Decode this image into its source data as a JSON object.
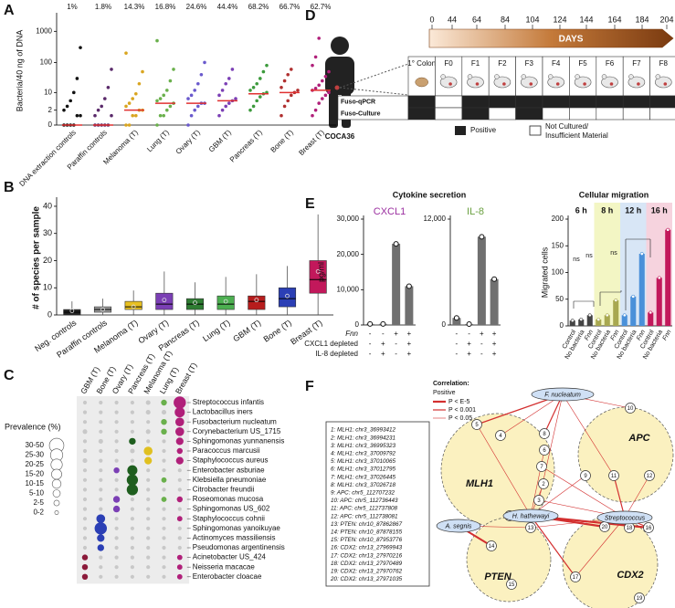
{
  "panel_labels": [
    "A",
    "B",
    "C",
    "D",
    "E",
    "F"
  ],
  "chart_data": [
    {
      "type": "strip",
      "ylabel": "Bacteria/40 ng of DNA",
      "yscale": "log1p",
      "ylim": [
        0,
        3000
      ],
      "yticks": [
        0,
        2,
        10,
        100,
        1000
      ],
      "categories": [
        "DNA extraction controls",
        "Paraffin controls",
        "Melanoma (T)",
        "Lung (T)",
        "Ovary (T)",
        "GBM (T)",
        "Pancreas (T)",
        "Bone (T)",
        "Breast (T)"
      ],
      "annotations": [
        "1%",
        "1.8%",
        "14.3%",
        "16.8%",
        "24.6%",
        "44.4%",
        "68.2%",
        "66.7%",
        "62.7%"
      ],
      "colors": [
        "#111111",
        "#5a2a6a",
        "#d9a520",
        "#6ab04c",
        "#6a5acd",
        "#7b3fb5",
        "#3c9a3c",
        "#b03030",
        "#b0207a"
      ],
      "median_color": "#e03030",
      "medians": [
        0,
        0,
        2,
        4,
        4,
        5,
        9,
        10,
        12
      ],
      "points": [
        [
          0,
          0,
          0,
          0,
          1,
          1,
          2,
          3,
          5,
          10,
          30,
          300
        ],
        [
          0,
          0,
          0,
          0,
          0,
          1,
          1,
          2,
          3,
          6,
          15,
          60
        ],
        [
          0,
          0,
          1,
          1,
          2,
          2,
          3,
          4,
          6,
          9,
          20,
          50,
          200
        ],
        [
          0,
          1,
          1,
          2,
          3,
          4,
          5,
          6,
          8,
          12,
          25,
          60,
          500
        ],
        [
          0,
          1,
          2,
          3,
          4,
          4,
          6,
          8,
          12,
          20,
          40,
          100
        ],
        [
          1,
          2,
          3,
          4,
          5,
          6,
          8,
          12,
          20,
          30,
          60
        ],
        [
          2,
          3,
          5,
          7,
          9,
          10,
          12,
          15,
          20,
          30,
          50,
          80
        ],
        [
          1,
          3,
          5,
          8,
          10,
          12,
          15,
          25,
          40,
          60
        ],
        [
          1,
          2,
          4,
          6,
          8,
          10,
          12,
          14,
          18,
          25,
          35,
          50,
          80,
          150,
          600
        ]
      ]
    },
    {
      "type": "box",
      "ylabel": "# of species per sample",
      "ylim": [
        0,
        42
      ],
      "yticks": [
        0,
        10,
        20,
        30,
        40
      ],
      "categories": [
        "Neg. controls",
        "Paraffin controls",
        "Melanoma (T)",
        "Ovary (T)",
        "Pancreas (T)",
        "Lung (T)",
        "GBM (T)",
        "Bone (T)",
        "Breast (T)"
      ],
      "colors": [
        "#222222",
        "#999999",
        "#e8c020",
        "#7b3fb5",
        "#2e7d32",
        "#4caf50",
        "#b71c1c",
        "#2b3fb5",
        "#c2185b"
      ],
      "whisker_low": [
        0,
        0,
        0,
        0,
        0,
        0,
        0,
        0,
        0
      ],
      "q1": [
        0,
        1,
        2,
        2,
        2,
        2,
        2,
        3,
        8
      ],
      "median": [
        1,
        2,
        3,
        4,
        4,
        4,
        5,
        6,
        13
      ],
      "q3": [
        2,
        3,
        5,
        8,
        6,
        7,
        7,
        10,
        20
      ],
      "whisker_high": [
        5,
        6,
        9,
        16,
        12,
        14,
        15,
        18,
        37
      ],
      "means": [
        1.5,
        2,
        3,
        5.5,
        4.5,
        5,
        5.5,
        7,
        16
      ]
    },
    {
      "type": "dot_matrix",
      "legend_title": "Prevalence (%)",
      "background_color": "#c8c8c8",
      "legend": [
        {
          "value": 40,
          "label": "30-50"
        },
        {
          "value": 27.5,
          "label": "25-30"
        },
        {
          "value": 22.5,
          "label": "20-25"
        },
        {
          "value": 17.5,
          "label": "15-20"
        },
        {
          "value": 12.5,
          "label": "10-15"
        },
        {
          "value": 7.5,
          "label": "5-10"
        },
        {
          "value": 3.5,
          "label": "2-5"
        },
        {
          "value": 1,
          "label": "0-2"
        }
      ],
      "rows": [
        "Streptococcus infantis",
        "Lactobacillus iners",
        "Fusobacterium nucleatum",
        "Corynebacterium US_1715",
        "Sphingomonas yunnanensis",
        "Paracoccus marcusii",
        "Staphylococcus aureus",
        "Enterobacter asburiae",
        "Klebsiella pneumoniae",
        "Citrobacter freundii",
        "Roseomonas mucosa",
        "Sphingomonas US_602",
        "Staphylococcus cohnii",
        "Sphingomonas yanoikuyae",
        "Actinomyces massiliensis",
        "Pseudomonas argentinensis",
        "Acinetobacter US_424",
        "Neisseria macacae",
        "Enterobacter cloacae"
      ],
      "series": [
        {
          "name": "GBM (T)",
          "color": "#8b1a3a",
          "values": [
            1,
            1,
            1,
            2,
            1,
            1,
            2,
            1,
            1,
            1,
            1,
            1,
            1,
            1,
            1,
            1,
            4,
            4,
            4
          ],
          "highlight": [
            16,
            17,
            18
          ]
        },
        {
          "name": "Bone (T)",
          "color": "#2b3fb5",
          "values": [
            1,
            1,
            1,
            1,
            2,
            1,
            1,
            1,
            1,
            1,
            1,
            1,
            12,
            27,
            8,
            6,
            1,
            1,
            1
          ],
          "highlight": [
            12,
            13,
            14,
            15
          ]
        },
        {
          "name": "Ovary (T)",
          "color": "#7b3fb5",
          "values": [
            1,
            1,
            1,
            1,
            1,
            1,
            1,
            4,
            1,
            1,
            6,
            6,
            1,
            1,
            1,
            1,
            1,
            1,
            1
          ],
          "highlight": [
            7,
            10,
            11
          ]
        },
        {
          "name": "Pancreas (T)",
          "color": "#1e5e1e",
          "values": [
            1,
            1,
            1,
            1,
            6,
            2,
            1,
            17,
            22,
            22,
            1,
            1,
            1,
            1,
            1,
            1,
            1,
            1,
            1
          ],
          "highlight": [
            4,
            7,
            8,
            9
          ]
        },
        {
          "name": "Melanoma (T)",
          "color": "#e0c020",
          "values": [
            2,
            2,
            1,
            2,
            1,
            12,
            8,
            1,
            1,
            1,
            1,
            1,
            1,
            1,
            1,
            1,
            1,
            1,
            1
          ],
          "highlight": [
            5,
            6
          ]
        },
        {
          "name": "Lung (T)",
          "color": "#6ab04c",
          "values": [
            4,
            2,
            4,
            4,
            1,
            1,
            1,
            1,
            3,
            1,
            3,
            1,
            1,
            1,
            1,
            1,
            1,
            1,
            1
          ],
          "highlight": [
            0,
            2,
            3,
            8,
            10
          ]
        },
        {
          "name": "Breast (T)",
          "color": "#b0207a",
          "values": [
            27,
            17,
            12,
            12,
            8,
            4,
            8,
            1,
            1,
            1,
            4,
            1,
            3,
            1,
            1,
            1,
            3,
            3,
            3
          ],
          "highlight": [
            0,
            1,
            2,
            3,
            4,
            5,
            6,
            10,
            12,
            16,
            17,
            18
          ]
        }
      ]
    },
    {
      "type": "bar",
      "group_title": "Cytokine secretion",
      "title": "CXCL1",
      "title_color": "#9b2fa0",
      "ylabel": "pg/ml",
      "color": "#707070",
      "ylim": [
        0,
        30000
      ],
      "yticks": [
        0,
        {
          "value": 10000,
          "label": "10,000"
        },
        {
          "value": 20000,
          "label": "20,000"
        },
        {
          "value": 30000,
          "label": "30,000"
        }
      ],
      "values": [
        300,
        300,
        23000,
        11000
      ],
      "conditions": [
        {
          "name": "Fnn",
          "signs": [
            "-",
            "-",
            "+",
            "+"
          ]
        },
        {
          "name": "CXCL1 depleted",
          "signs": [
            "-",
            "+",
            "-",
            "+"
          ]
        },
        {
          "name": "IL-8 depleted",
          "signs": [
            "-",
            "+",
            "-",
            "+"
          ]
        }
      ]
    },
    {
      "type": "bar",
      "title": "IL-8",
      "title_color": "#6aa040",
      "color": "#707070",
      "ylim": [
        0,
        12000
      ],
      "yticks": [
        0,
        {
          "value": 12000,
          "label": "12,000"
        }
      ],
      "values": [
        800,
        100,
        10000,
        5200
      ],
      "signs": [
        [
          "-",
          "-",
          "+",
          "+"
        ],
        [
          "-",
          "+",
          "-",
          "+"
        ],
        [
          "-",
          "+",
          "-",
          "+"
        ]
      ]
    },
    {
      "type": "grouped_bar",
      "title": "Cellular migration",
      "ylabel": "Migrated cells",
      "ylim": [
        0,
        200
      ],
      "yticks": [
        0,
        50,
        100,
        150,
        200
      ],
      "annotations": [
        "ns",
        "ns",
        "ns"
      ],
      "groups": [
        {
          "name": "6 h",
          "color": "#444444",
          "band_color": "#ffffff",
          "categories": [
            "Control",
            "No bacteria",
            "Fnn"
          ],
          "values": [
            10,
            12,
            20
          ]
        },
        {
          "name": "8 h",
          "color": "#a8a850",
          "band_color": "#f3f6c4",
          "categories": [
            "Control",
            "No bacteria",
            "Fnn"
          ],
          "values": [
            12,
            20,
            48
          ]
        },
        {
          "name": "12 h",
          "color": "#4a90d9",
          "band_color": "#d8e6f6",
          "categories": [
            "Control",
            "No bacteria",
            "Fnn"
          ],
          "values": [
            20,
            55,
            135
          ]
        },
        {
          "name": "16 h",
          "color": "#c2185b",
          "band_color": "#f6d3de",
          "categories": [
            "Control",
            "No bacteria",
            "Fnn"
          ],
          "values": [
            25,
            90,
            180
          ]
        }
      ]
    }
  ],
  "diagram_d": {
    "axis_title": "DAYS",
    "ticks": [
      "0",
      "44",
      "64",
      "84",
      "104",
      "124",
      "144",
      "164",
      "184",
      "204"
    ],
    "patient": "COCA36",
    "samples": [
      "1° Colon",
      "F0",
      "F1",
      "F2",
      "F3",
      "F4",
      "F5",
      "F6",
      "F7",
      "F8"
    ],
    "rows": [
      {
        "name": "Fuso-qPCR",
        "positive": [
          true,
          false,
          true,
          true,
          true,
          true,
          true,
          true,
          true,
          true
        ]
      },
      {
        "name": "Fuso-Culture",
        "positive": [
          true,
          false,
          true,
          false,
          true,
          false,
          false,
          false,
          false,
          false
        ]
      }
    ],
    "legend_positive": "Positive",
    "legend_negative": [
      "Not Cultured/",
      "Insufficient Material"
    ]
  },
  "network_f": {
    "correlation_title": "Correlation:",
    "correlation_sign": "Positive",
    "pvalue_legend": [
      "P < E-5",
      "P < 0.001",
      "P < 0.05"
    ],
    "genes": [
      "MLH1",
      "APC",
      "PTEN",
      "CDX2"
    ],
    "bacteria": [
      "F. nucleatum",
      "A. segnis",
      "H. hathewayi",
      "Streptococcus"
    ],
    "probes": [
      "1",
      "2",
      "3",
      "4",
      "5",
      "6",
      "7",
      "8",
      "9",
      "10",
      "11",
      "12",
      "13",
      "14",
      "15",
      "16",
      "17",
      "18",
      "19",
      "20"
    ],
    "probe_list": [
      "1: MLH1: chr3_36993412",
      "2: MLH1: chr3_36994231",
      "3: MLH1: chr3_36995323",
      "4: MLH1: chr3_37009792",
      "5: MLH1: chr3_37010065",
      "6: MLH1: chr3_37012795",
      "7: MLH1: chr3_37026445",
      "8: MLH1: chr3_37026718",
      "9: APC: chr5_112707232",
      "10: APC: chr5_112736443",
      "11: APC: chr5_112737808",
      "12: APC: chr5_112738081",
      "13: PTEN: chr10_87862867",
      "14: PTEN: chr10_87878155",
      "15: PTEN: chr10_87953776",
      "16: CDX2: chr13_27969943",
      "17: CDX2: chr13_27970216",
      "18: CDX2: chr13_27970489",
      "19: CDX2: chr13_27970762",
      "20: CDX2: chr13_27971035"
    ]
  }
}
